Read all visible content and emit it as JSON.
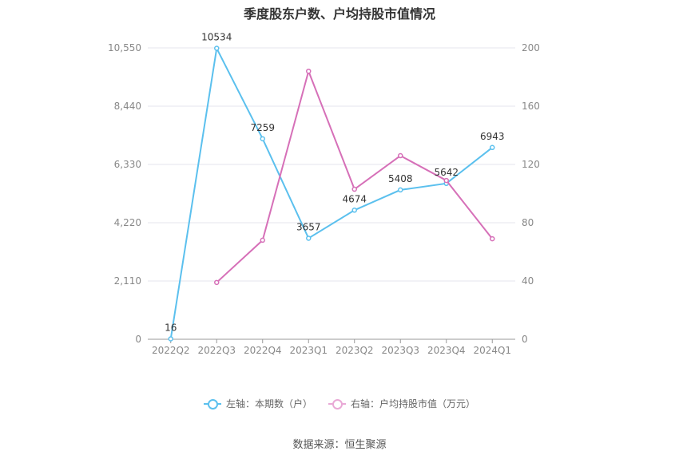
{
  "title": "季度股东户数、户均持股市值情况",
  "source": "数据来源：恒生聚源",
  "legend": {
    "left_series": "左轴：本期数（户）",
    "right_series": "右轴：户均持股市值（万元）"
  },
  "colors": {
    "left_series": "#5bc0ee",
    "right_series": "#d670b8",
    "grid": "#e6e6ee",
    "axis": "#999999"
  },
  "chart_data": {
    "type": "line",
    "title": "季度股东户数、户均持股市值情况",
    "categories": [
      "2022Q2",
      "2022Q3",
      "2022Q4",
      "2023Q1",
      "2023Q2",
      "2023Q3",
      "2023Q4",
      "2024Q1"
    ],
    "y_left": {
      "ticks": [
        "0",
        "2,110",
        "4,220",
        "6,330",
        "8,440",
        "10,550"
      ],
      "range": [
        0,
        10550
      ]
    },
    "y_right": {
      "ticks": [
        "0",
        "40",
        "80",
        "120",
        "160",
        "200"
      ],
      "range": [
        0,
        200
      ]
    },
    "grid": true,
    "legend_position": "bottom",
    "series": [
      {
        "name": "左轴：本期数（户）",
        "axis": "left",
        "values": [
          16,
          10534,
          7259,
          3657,
          4674,
          5408,
          5642,
          6943
        ],
        "labels": [
          "16",
          "10534",
          "7259",
          "3657",
          "4674",
          "5408",
          "5642",
          "6943"
        ]
      },
      {
        "name": "右轴：户均持股市值（万元）",
        "axis": "right",
        "values": [
          null,
          39,
          68,
          184,
          103,
          126,
          109,
          69
        ]
      }
    ]
  }
}
